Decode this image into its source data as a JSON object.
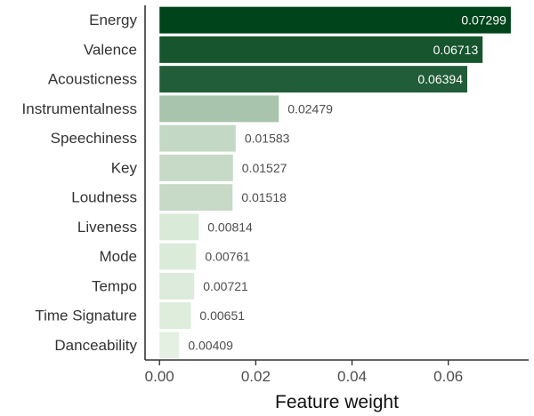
{
  "chart_data": {
    "type": "bar",
    "orientation": "horizontal",
    "categories": [
      "Energy",
      "Valence",
      "Acousticness",
      "Instrumentalness",
      "Speechiness",
      "Key",
      "Loudness",
      "Liveness",
      "Mode",
      "Tempo",
      "Time Signature",
      "Danceability"
    ],
    "values": [
      0.07299,
      0.06713,
      0.06394,
      0.02479,
      0.01583,
      0.01527,
      0.01518,
      0.00814,
      0.00761,
      0.00721,
      0.00651,
      0.00409
    ],
    "value_labels": [
      "0.07299",
      "0.06713",
      "0.06394",
      "0.02479",
      "0.01583",
      "0.01527",
      "0.01518",
      "0.00814",
      "0.00761",
      "0.00721",
      "0.00651",
      "0.00409"
    ],
    "title": "",
    "xlabel": "Feature weight",
    "ylabel": "",
    "xlim": [
      -0.003,
      0.0767
    ],
    "x_ticks": [
      0.0,
      0.02,
      0.04,
      0.06
    ],
    "x_tick_labels": [
      "0.00",
      "0.02",
      "0.04",
      "0.06"
    ],
    "grid": false,
    "legend": "none",
    "color_scale": {
      "low": "#edf8e9",
      "high": "#00441b",
      "label_on_bar_color": "#ffffff",
      "label_outside_color": "#4d4d4d"
    }
  }
}
